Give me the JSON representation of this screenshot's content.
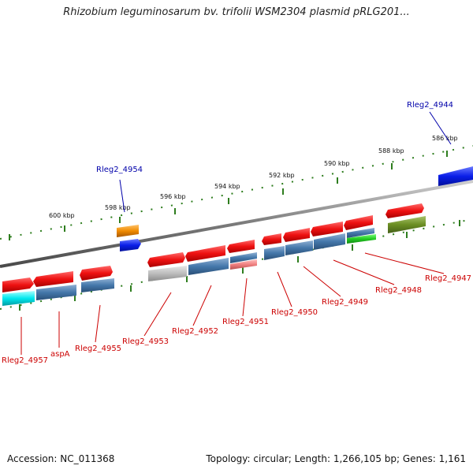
{
  "title": "Rhizobium leguminosarum bv. trifolii WSM2304 plasmid pRLG201...",
  "footer": {
    "accession": "Accession: NC_011368",
    "topology": "Topology: circular; Length: 1,266,105 bp; Genes: 1,161"
  },
  "colors": {
    "backbone": "#888888",
    "tick": "#2e7d1e",
    "forward_gene": "#ee1111",
    "reverse_cds": "#4477aa",
    "label_red": "#cc0000",
    "label_blue": "#0000aa"
  },
  "scale_labels": [
    "600 kbp",
    "598 kbp",
    "596 kbp",
    "594 kbp",
    "592 kbp",
    "590 kbp",
    "588 kbp",
    "586 kbp"
  ],
  "gene_labels_bottom": [
    "Rleg2_4957",
    "aspA",
    "Rleg2_4955",
    "Rleg2_4953",
    "Rleg2_4952",
    "Rleg2_4951",
    "Rleg2_4950",
    "Rleg2_4949",
    "Rleg2_4948",
    "Rleg2_4947"
  ],
  "gene_labels_top": [
    "Rleg2_4954",
    "Rleg2_4944"
  ]
}
